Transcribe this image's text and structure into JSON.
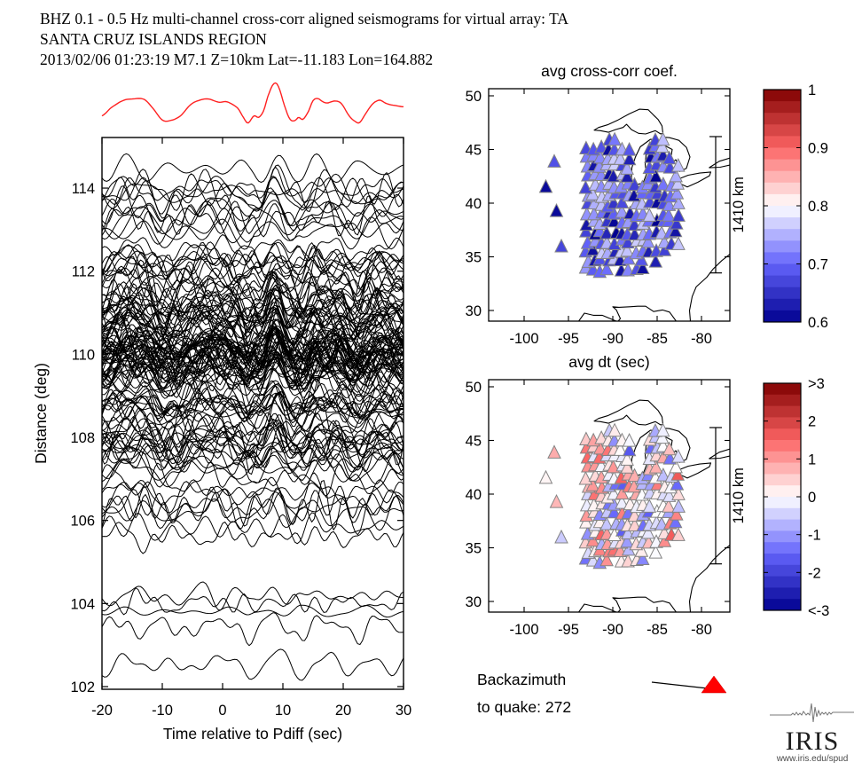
{
  "header": {
    "line1": "BHZ  0.1 - 0.5 Hz  multi-channel cross-corr aligned seismograms for virtual array: TA",
    "line2": "SANTA CRUZ ISLANDS REGION",
    "line3": "2013/02/06  01:23:19  M7.1  Z=10km Lat=-11.183 Lon=164.882"
  },
  "colors": {
    "reference_trace_red": "#ff2020",
    "trace_black": "#000000",
    "triangle_edge_gray": "#848484",
    "quake_triangle_red": "#ff0000",
    "coastline_black": "#000000",
    "colorbar_dark_red": "#7f0000",
    "colorbar_dark_blue": "#00008f",
    "colorbar_white": "#ffffff"
  },
  "chart_data": [
    {
      "id": "seismogram-section",
      "type": "line",
      "title": "",
      "xlabel": "Time relative to Pdiff (sec)",
      "ylabel": "Distance (deg)",
      "xlim": [
        -20,
        30
      ],
      "ylim": [
        102,
        115.3
      ],
      "xticks": [
        -20,
        -10,
        0,
        10,
        20,
        30
      ],
      "yticks": [
        102,
        104,
        106,
        108,
        110,
        112,
        114
      ],
      "grid": false,
      "reference_trace": {
        "description": "array beam stack plotted above section",
        "t": [
          -20,
          -18.5,
          -16.5,
          -15,
          -13,
          -11.5,
          -10,
          -8.7,
          -7,
          -5.3,
          -3.8,
          -2.4,
          -0.6,
          0.6,
          1.6,
          2.6,
          3.4,
          4.2,
          5.2,
          6,
          6.8,
          7.5,
          8.4,
          9.2,
          10.4,
          11.2,
          12,
          12.6,
          13.3,
          14.2,
          15,
          15.8,
          16.6,
          17.3,
          18,
          18.7,
          19.7,
          21,
          22,
          22.7,
          23.6,
          24.5,
          25.2,
          26.1,
          27,
          27.8,
          28.8,
          29.8,
          30
        ],
        "a": [
          -0.55,
          -0.15,
          0.2,
          0.28,
          0.26,
          -0.2,
          -0.75,
          -0.78,
          -0.55,
          0.0,
          0.22,
          0.28,
          0.12,
          0.15,
          0.02,
          -0.2,
          -0.6,
          -0.9,
          -0.55,
          -0.62,
          -0.3,
          0.4,
          1.0,
          0.92,
          -0.15,
          -0.72,
          -0.78,
          -0.62,
          -0.72,
          -0.35,
          0.2,
          0.3,
          0.15,
          0.08,
          0.14,
          0.18,
          0.05,
          -0.55,
          -0.82,
          -0.88,
          -0.5,
          -0.1,
          0.12,
          0.22,
          0.08,
          0.0,
          -0.05,
          -0.1,
          -0.1
        ]
      },
      "dense_band": {
        "count": 135,
        "dist_min": 106.15,
        "dist_max": 114.1,
        "amplitude_deg": 0.52,
        "seed": 20130206
      },
      "isolated_distances": [
        114.47,
        105.85,
        105.62,
        104.2,
        104.02,
        103.82,
        103.45,
        102.55
      ]
    },
    {
      "id": "map-avg-cc",
      "type": "scatter",
      "title": "avg cross-corr coef.",
      "xlim": [
        -104,
        -76.8
      ],
      "ylim": [
        29,
        50.66
      ],
      "xticks": [
        -100,
        -95,
        -90,
        -85,
        -80
      ],
      "yticks": [
        30,
        35,
        40,
        45,
        50
      ],
      "value_field": "cc",
      "colorbar": {
        "labels": [
          "1",
          "0.9",
          "0.8",
          "0.7",
          "0.6"
        ],
        "values": [
          1,
          0.9,
          0.8,
          0.7,
          0.6
        ],
        "vmin": 0.6,
        "vmax": 1.0,
        "center": 0.8,
        "segments": 20
      },
      "scalebar": {
        "label": "1410 km",
        "lon": -78.4,
        "lat_top": 46.2,
        "lat_bottom": 33.5
      }
    },
    {
      "id": "map-avg-dt",
      "type": "scatter",
      "title": "avg dt (sec)",
      "xlim": [
        -104,
        -76.8
      ],
      "ylim": [
        29,
        50.66
      ],
      "xticks": [
        -100,
        -95,
        -90,
        -85,
        -80
      ],
      "yticks": [
        30,
        35,
        40,
        45,
        50
      ],
      "value_field": "dt",
      "colorbar": {
        "labels": [
          ">3",
          "2",
          "1",
          "0",
          "-1",
          "-2",
          "<-3"
        ],
        "values": [
          3,
          2,
          1,
          0,
          -1,
          -2,
          -3
        ],
        "vmin": -3,
        "vmax": 3,
        "center": 0,
        "segments": 20
      },
      "scalebar": {
        "label": "1410 km",
        "lon": -78.4,
        "lat_top": 46.2,
        "lat_bottom": 33.5
      }
    }
  ],
  "stations": {
    "description": "TA virtual-array stations plotted as triangles on both maps",
    "grid": {
      "lon_start": -92.9,
      "lon_step": 0.78,
      "cols": 14,
      "lat_start": 33.75,
      "lat_step": 0.875,
      "rows": 15,
      "jitter_lon": 0.18,
      "jitter_lat": 0.22,
      "dropout": 0.06
    },
    "outliers": [
      {
        "lon": -97.55,
        "lat": 41.5,
        "cc": 0.61,
        "dt": 0.1
      },
      {
        "lon": -96.6,
        "lat": 43.85,
        "cc": 0.68,
        "dt": 0.8
      },
      {
        "lon": -96.35,
        "lat": 39.25,
        "cc": 0.61,
        "dt": 0.7
      },
      {
        "lon": -95.8,
        "lat": 35.95,
        "cc": 0.67,
        "dt": -0.5
      }
    ],
    "cc_range": [
      0.6,
      0.78
    ],
    "dt_range": [
      -2.2,
      2.2
    ],
    "seed": 991
  },
  "basemap": {
    "segments": [
      [
        [
          -84.35,
          46.5
        ],
        [
          -84.6,
          46.45
        ],
        [
          -85.2,
          46.75
        ],
        [
          -86.3,
          46.45
        ],
        [
          -87.1,
          46.5
        ],
        [
          -87.9,
          46.85
        ],
        [
          -88.45,
          47.35
        ],
        [
          -88.85,
          47.05
        ],
        [
          -89.7,
          46.85
        ],
        [
          -90.5,
          46.6
        ],
        [
          -91.4,
          46.75
        ],
        [
          -92.1,
          46.8
        ],
        [
          -91.6,
          47.05
        ],
        [
          -90.6,
          47.3
        ],
        [
          -89.4,
          47.75
        ],
        [
          -88.2,
          48.3
        ],
        [
          -87.0,
          48.75
        ],
        [
          -86.0,
          48.7
        ],
        [
          -85.4,
          48.2
        ],
        [
          -84.9,
          47.8
        ],
        [
          -84.45,
          47.2
        ],
        [
          -84.35,
          46.5
        ]
      ],
      [
        [
          -87.6,
          41.7
        ],
        [
          -87.9,
          42.4
        ],
        [
          -87.85,
          43.3
        ],
        [
          -87.45,
          44.3
        ],
        [
          -86.9,
          45.25
        ],
        [
          -85.75,
          45.95
        ],
        [
          -85.0,
          45.9
        ],
        [
          -84.8,
          45.55
        ],
        [
          -85.35,
          44.9
        ],
        [
          -86.25,
          44.5
        ],
        [
          -86.35,
          43.6
        ],
        [
          -86.2,
          42.7
        ],
        [
          -86.6,
          41.85
        ],
        [
          -87.6,
          41.7
        ]
      ],
      [
        [
          -84.75,
          45.85
        ],
        [
          -84.0,
          45.3
        ],
        [
          -83.3,
          45.0
        ],
        [
          -83.45,
          44.25
        ],
        [
          -83.95,
          43.9
        ],
        [
          -83.5,
          43.6
        ],
        [
          -82.9,
          44.05
        ],
        [
          -82.6,
          43.55
        ],
        [
          -82.45,
          42.95
        ],
        [
          -81.7,
          43.25
        ],
        [
          -81.3,
          44.3
        ],
        [
          -81.7,
          45.2
        ],
        [
          -82.55,
          45.85
        ],
        [
          -83.6,
          46.1
        ],
        [
          -84.35,
          46.15
        ],
        [
          -84.75,
          45.85
        ]
      ],
      [
        [
          -83.15,
          42.25
        ],
        [
          -82.5,
          41.85
        ],
        [
          -81.6,
          41.5
        ],
        [
          -80.4,
          41.95
        ],
        [
          -79.1,
          42.55
        ],
        [
          -78.95,
          42.9
        ],
        [
          -80.2,
          42.8
        ],
        [
          -81.5,
          42.6
        ],
        [
          -82.45,
          42.3
        ],
        [
          -83.15,
          42.25
        ]
      ],
      [
        [
          -79.15,
          43.3
        ],
        [
          -77.9,
          43.35
        ],
        [
          -76.8,
          43.55
        ]
      ],
      [
        [
          -76.8,
          44.2
        ],
        [
          -78.0,
          43.9
        ],
        [
          -79.15,
          43.3
        ]
      ],
      [
        [
          -76.8,
          35.25
        ],
        [
          -77.7,
          34.65
        ],
        [
          -78.7,
          33.85
        ],
        [
          -79.4,
          33.1
        ],
        [
          -80.6,
          32.2
        ],
        [
          -81.05,
          31.3
        ],
        [
          -81.35,
          30.0
        ],
        [
          -81.25,
          29.0
        ]
      ],
      [
        [
          -93.85,
          29.0
        ],
        [
          -93.2,
          29.75
        ],
        [
          -92.2,
          29.55
        ],
        [
          -91.2,
          29.55
        ],
        [
          -90.3,
          29.25
        ],
        [
          -89.45,
          28.95
        ],
        [
          -89.15,
          29.25
        ],
        [
          -89.6,
          30.05
        ],
        [
          -90.0,
          30.35
        ],
        [
          -89.3,
          30.3
        ],
        [
          -88.1,
          30.35
        ],
        [
          -87.2,
          30.4
        ],
        [
          -86.3,
          30.4
        ],
        [
          -85.4,
          29.9
        ],
        [
          -84.4,
          30.05
        ],
        [
          -83.6,
          29.85
        ],
        [
          -82.85,
          29.0
        ]
      ]
    ]
  },
  "backazimuth": {
    "line1": "Backazimuth",
    "line2": "to quake:  272",
    "azimuth_deg": 272
  },
  "logo": {
    "text": "IRIS",
    "url": "www.iris.edu/spud"
  }
}
